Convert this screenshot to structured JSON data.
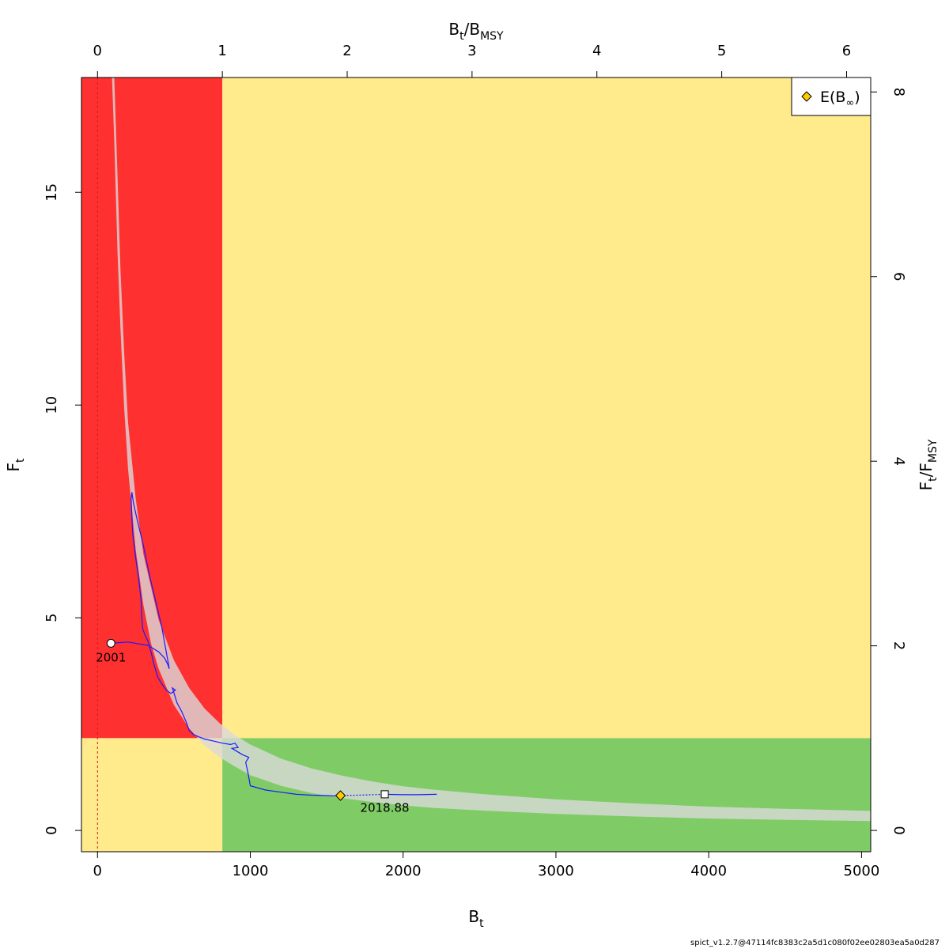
{
  "chart_data": {
    "type": "line",
    "title": "",
    "xlabel": "B",
    "xlabel_sub": "t",
    "ylabel": "F",
    "ylabel_sub": "t",
    "top_label_parts": [
      "B",
      "t",
      "/B",
      "MSY"
    ],
    "right_label_parts": [
      "F",
      "t",
      "/F",
      "MSY"
    ],
    "xlim": [
      -105,
      5060
    ],
    "ylim": [
      -0.5,
      17.7
    ],
    "bmsy": 817,
    "fmsy": 2.17,
    "x_ticks": [
      0,
      1000,
      2000,
      3000,
      4000,
      5000
    ],
    "y_ticks": [
      0,
      5,
      10,
      15
    ],
    "top_ticks": [
      "0",
      "1",
      "2",
      "3",
      "4",
      "5",
      "6"
    ],
    "right_ticks": [
      "0",
      "2",
      "4",
      "6",
      "8"
    ],
    "zone_colors": {
      "red": "#ff3030",
      "yellow": "#ffea8c",
      "green": "#7fcc66",
      "band": "#d9d9d9",
      "trajectory": "#1a1aff",
      "marker": "#ffcc00",
      "ref_line": "#cc2222"
    },
    "equilibrium_band": {
      "upper": [
        [
          110,
          17.7
        ],
        [
          130,
          15.5
        ],
        [
          150,
          13.2
        ],
        [
          175,
          11.2
        ],
        [
          200,
          9.6
        ],
        [
          250,
          7.8
        ],
        [
          300,
          6.5
        ],
        [
          400,
          4.95
        ],
        [
          500,
          4.0
        ],
        [
          600,
          3.35
        ],
        [
          700,
          2.87
        ],
        [
          800,
          2.52
        ],
        [
          900,
          2.24
        ],
        [
          1000,
          2.02
        ],
        [
          1200,
          1.69
        ],
        [
          1400,
          1.46
        ],
        [
          1600,
          1.29
        ],
        [
          1800,
          1.15
        ],
        [
          2000,
          1.04
        ],
        [
          2200,
          0.96
        ],
        [
          2500,
          0.86
        ],
        [
          3000,
          0.73
        ],
        [
          3500,
          0.64
        ],
        [
          4000,
          0.56
        ],
        [
          4500,
          0.51
        ],
        [
          5060,
          0.46
        ]
      ],
      "lower": [
        [
          5060,
          0.22
        ],
        [
          4500,
          0.25
        ],
        [
          4000,
          0.28
        ],
        [
          3500,
          0.33
        ],
        [
          3000,
          0.39
        ],
        [
          2500,
          0.47
        ],
        [
          2200,
          0.53
        ],
        [
          2000,
          0.59
        ],
        [
          1800,
          0.67
        ],
        [
          1600,
          0.76
        ],
        [
          1400,
          0.88
        ],
        [
          1200,
          1.05
        ],
        [
          1000,
          1.3
        ],
        [
          900,
          1.5
        ],
        [
          800,
          1.72
        ],
        [
          700,
          2.0
        ],
        [
          600,
          2.4
        ],
        [
          500,
          2.95
        ],
        [
          400,
          3.8
        ],
        [
          350,
          4.4
        ],
        [
          300,
          5.3
        ],
        [
          250,
          6.6
        ],
        [
          200,
          8.5
        ],
        [
          175,
          9.9
        ],
        [
          150,
          11.8
        ],
        [
          130,
          13.7
        ],
        [
          110,
          16.2
        ],
        [
          95,
          17.7
        ]
      ]
    },
    "trajectory": [
      [
        88,
        4.4
      ],
      [
        200,
        4.43
      ],
      [
        330,
        4.35
      ],
      [
        400,
        4.2
      ],
      [
        440,
        4.05
      ],
      [
        460,
        3.9
      ],
      [
        470,
        3.8
      ],
      [
        450,
        4.2
      ],
      [
        420,
        4.8
      ],
      [
        380,
        5.4
      ],
      [
        340,
        6.0
      ],
      [
        300,
        6.7
      ],
      [
        260,
        7.3
      ],
      [
        235,
        7.7
      ],
      [
        225,
        7.95
      ],
      [
        220,
        7.8
      ],
      [
        230,
        7.0
      ],
      [
        250,
        6.4
      ],
      [
        270,
        5.9
      ],
      [
        285,
        5.4
      ],
      [
        290,
        5.0
      ],
      [
        295,
        4.75
      ],
      [
        310,
        4.6
      ],
      [
        330,
        4.45
      ],
      [
        350,
        4.2
      ],
      [
        370,
        3.9
      ],
      [
        395,
        3.6
      ],
      [
        420,
        3.45
      ],
      [
        450,
        3.3
      ],
      [
        480,
        3.22
      ],
      [
        510,
        3.3
      ],
      [
        490,
        3.35
      ],
      [
        520,
        3.0
      ],
      [
        550,
        2.8
      ],
      [
        580,
        2.55
      ],
      [
        600,
        2.35
      ],
      [
        630,
        2.25
      ],
      [
        700,
        2.15
      ],
      [
        760,
        2.1
      ],
      [
        820,
        2.05
      ],
      [
        870,
        2.02
      ],
      [
        900,
        2.05
      ],
      [
        920,
        1.95
      ],
      [
        880,
        1.93
      ],
      [
        950,
        1.78
      ],
      [
        990,
        1.72
      ],
      [
        970,
        1.6
      ],
      [
        985,
        1.35
      ],
      [
        1000,
        1.05
      ],
      [
        1100,
        0.95
      ],
      [
        1200,
        0.9
      ],
      [
        1300,
        0.85
      ],
      [
        1400,
        0.83
      ],
      [
        1500,
        0.82
      ],
      [
        1550,
        0.81
      ],
      [
        1590,
        0.82
      ]
    ],
    "prediction": [
      [
        1590,
        0.82
      ],
      [
        1700,
        0.83
      ],
      [
        1800,
        0.84
      ],
      [
        1880,
        0.85
      ]
    ],
    "projection": [
      [
        1880,
        0.85
      ],
      [
        2000,
        0.84
      ],
      [
        2100,
        0.84
      ],
      [
        2220,
        0.85
      ]
    ],
    "start_point": {
      "x": 88,
      "y": 4.4,
      "label": "2001"
    },
    "end_point": {
      "x": 1880,
      "y": 0.85,
      "label": "2018.88"
    },
    "equilibrium_point": {
      "x": 1590,
      "y": 0.82
    },
    "legend": {
      "placement": "top-right",
      "label": "E(B",
      "label_symbol": "∞",
      "label_close": ")"
    }
  },
  "footer": "spict_v1.2.7@47114fc8383c2a5d1c080f02ee02803ea5a0d287"
}
